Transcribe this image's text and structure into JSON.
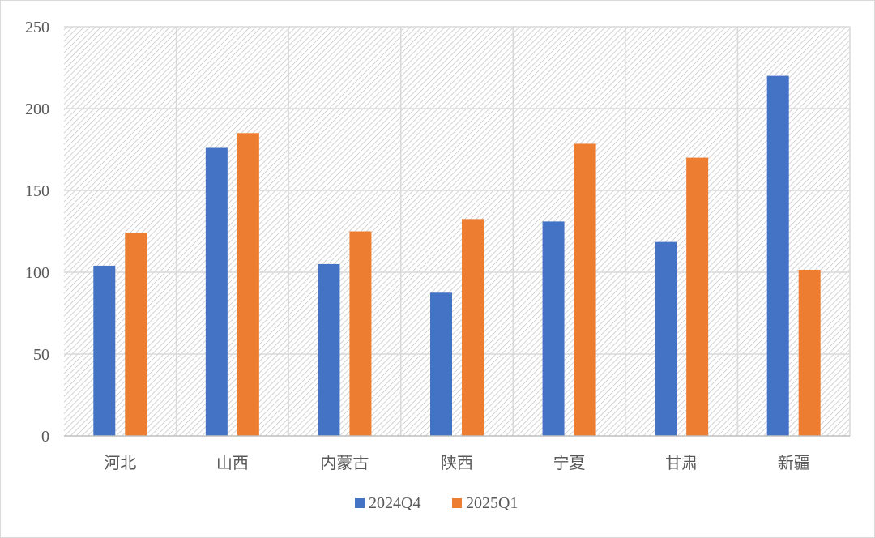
{
  "chart_data": {
    "type": "bar",
    "categories": [
      "河北",
      "山西",
      "内蒙古",
      "陕西",
      "宁夏",
      "甘肃",
      "新疆"
    ],
    "series": [
      {
        "name": "2024Q4",
        "color": "#4472C4",
        "values": [
          104,
          176,
          105,
          87.5,
          131,
          118.5,
          220
        ]
      },
      {
        "name": "2025Q1",
        "color": "#ED7D31",
        "values": [
          124,
          185,
          125,
          132.5,
          178.5,
          170,
          101.5
        ]
      }
    ],
    "ylim": [
      0,
      250
    ],
    "yticks": [
      0,
      50,
      100,
      150,
      200,
      250
    ],
    "grid": true,
    "legend": "bottom"
  }
}
